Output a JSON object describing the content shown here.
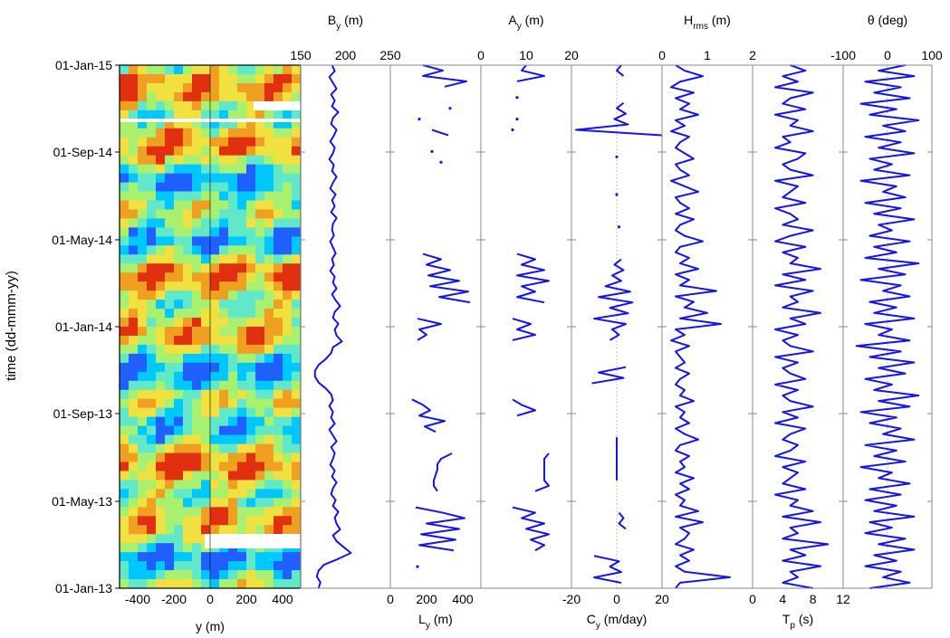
{
  "colors": {
    "line": "#1515e6",
    "axis": "#000000",
    "grid": "#8a8a8a"
  },
  "y_axis": {
    "label": "time (dd-mmm-yy)",
    "ticks": [
      "01-Jan-15",
      "01-Sep-14",
      "01-May-14",
      "01-Jan-14",
      "01-Sep-13",
      "01-May-13",
      "01-Jan-13"
    ]
  },
  "chart_data": [
    {
      "type": "heatmap",
      "xlabel": "y (m)",
      "xticks": [
        "-400",
        "-200",
        "0",
        "200",
        "400"
      ],
      "xlim": [
        -500,
        500
      ],
      "colormap": [
        "#2060ff",
        "#00c8ff",
        "#60e8c8",
        "#a8f070",
        "#f0e040",
        "#f0a020",
        "#e03010"
      ]
    },
    {
      "type": "line",
      "label_main": "B",
      "label_sub": "y",
      "label_suffix": " (m)",
      "label_position": "top",
      "xlim": [
        150,
        250
      ],
      "xticks": [
        "150",
        "200",
        "250"
      ],
      "values": [
        185,
        188,
        182,
        186,
        190,
        184,
        188,
        185,
        192,
        186,
        184,
        190,
        187,
        183,
        188,
        186,
        182,
        187,
        185,
        190,
        186,
        183,
        189,
        185,
        188,
        184,
        190,
        186,
        185,
        187,
        183,
        186,
        189,
        185,
        187,
        183,
        188,
        186,
        190,
        185,
        189,
        194,
        188,
        186,
        192,
        188,
        190,
        196,
        186,
        184,
        178,
        170,
        166,
        166,
        170,
        178,
        184,
        186,
        182,
        186,
        184,
        188,
        182,
        186,
        190,
        184,
        188,
        186,
        183,
        188,
        185,
        190,
        186,
        184,
        189,
        186,
        192,
        188,
        190,
        194,
        186,
        190,
        198,
        206,
        192,
        176,
        170,
        168,
        172,
        170
      ]
    },
    {
      "type": "line",
      "label_main": "L",
      "label_sub": "y",
      "label_suffix": " (m)",
      "label_position": "bottom",
      "xlim": [
        0,
        500
      ],
      "xticks": [
        "0",
        "200",
        "400"
      ],
      "values": [
        180,
        290,
        180,
        420,
        300,
        null,
        null,
        null,
        330,
        null,
        160,
        null,
        230,
        320,
        null,
        null,
        230,
        null,
        280,
        null,
        null,
        null,
        null,
        null,
        null,
        null,
        null,
        null,
        null,
        null,
        null,
        null,
        null,
        null,
        null,
        180,
        280,
        200,
        330,
        210,
        380,
        220,
        430,
        270,
        440,
        null,
        null,
        150,
        280,
        160,
        200,
        150,
        null,
        null,
        null,
        null,
        null,
        null,
        null,
        null,
        null,
        null,
        120,
        180,
        220,
        160,
        300,
        190,
        250,
        null,
        null,
        null,
        340,
        280,
        260,
        260,
        250,
        240,
        240,
        260,
        null,
        null,
        140,
        290,
        410,
        200,
        380,
        170,
        360,
        160,
        350,
        null,
        null,
        150,
        null,
        null,
        null,
        null
      ]
    },
    {
      "type": "line",
      "label_main": "A",
      "label_sub": "y",
      "label_suffix": " (m)",
      "label_position": "top",
      "xlim": [
        0,
        20
      ],
      "xticks": [
        "0",
        "10",
        "20"
      ],
      "values": [
        10,
        9,
        14,
        8,
        null,
        null,
        8,
        null,
        null,
        null,
        8,
        null,
        7,
        null,
        null,
        null,
        null,
        null,
        null,
        null,
        null,
        null,
        null,
        null,
        null,
        null,
        null,
        null,
        null,
        null,
        null,
        null,
        null,
        null,
        null,
        8,
        12,
        9,
        14,
        8,
        15,
        9,
        12,
        8,
        14,
        null,
        null,
        7,
        11,
        8,
        12,
        7,
        null,
        null,
        null,
        null,
        null,
        null,
        null,
        null,
        null,
        null,
        7,
        9,
        12,
        8,
        null,
        null,
        null,
        null,
        null,
        null,
        15,
        14,
        14,
        14,
        14,
        14,
        15,
        12,
        null,
        null,
        7,
        12,
        9,
        14,
        10,
        15,
        11,
        14,
        12,
        null,
        null,
        null,
        null,
        null,
        null,
        null
      ]
    },
    {
      "type": "line",
      "label_main": "C",
      "label_sub": "y",
      "label_suffix": " (m/day)",
      "label_position": "bottom",
      "xlim": [
        -20,
        20
      ],
      "xticks": [
        "-20",
        "0",
        "20"
      ],
      "values": [
        2,
        0,
        3,
        null,
        null,
        null,
        null,
        3,
        0,
        4,
        -1,
        5,
        -18,
        20,
        null,
        null,
        null,
        0,
        null,
        null,
        null,
        null,
        null,
        null,
        0,
        null,
        null,
        null,
        null,
        null,
        1,
        null,
        null,
        null,
        null,
        null,
        2,
        -1,
        3,
        -2,
        2,
        -5,
        6,
        -8,
        7,
        -3,
        5,
        -10,
        4,
        -2,
        1,
        -3,
        null,
        null,
        null,
        null,
        4,
        -8,
        3,
        -11,
        null,
        null,
        null,
        null,
        null,
        null,
        null,
        null,
        null,
        0,
        0,
        0,
        0,
        0,
        0,
        0,
        0,
        0,
        null,
        null,
        null,
        null,
        null,
        1,
        3,
        1,
        4,
        null,
        null,
        null,
        null,
        -10,
        1,
        -3,
        2,
        -10,
        2,
        null
      ]
    },
    {
      "type": "line",
      "label_main": "H",
      "label_sub": "rms",
      "label_suffix": " (m)",
      "label_position": "top",
      "xlim": [
        0,
        2
      ],
      "xticks": [
        "0",
        "1",
        "2"
      ],
      "values": [
        0.3,
        0.5,
        0.9,
        0.4,
        0.2,
        0.7,
        0.3,
        0.6,
        0.4,
        0.8,
        0.3,
        0.5,
        0.2,
        0.6,
        0.4,
        0.3,
        0.5,
        0.7,
        0.3,
        0.4,
        0.6,
        0.2,
        0.5,
        0.8,
        0.3,
        0.4,
        0.6,
        0.3,
        0.7,
        0.4,
        0.3,
        0.5,
        0.9,
        0.4,
        0.3,
        0.6,
        0.4,
        0.8,
        0.3,
        0.6,
        0.4,
        1.2,
        0.3,
        0.7,
        0.5,
        1.0,
        0.4,
        1.3,
        0.3,
        0.5,
        0.2,
        0.6,
        0.3,
        0.4,
        0.5,
        0.3,
        0.6,
        0.4,
        0.3,
        0.5,
        0.4,
        0.7,
        0.3,
        0.5,
        0.4,
        0.6,
        0.3,
        0.5,
        0.8,
        0.4,
        0.3,
        0.6,
        0.4,
        0.5,
        0.3,
        0.7,
        0.4,
        0.6,
        0.3,
        0.5,
        0.4,
        0.8,
        0.3,
        0.9,
        0.4,
        0.6,
        0.5,
        0.3,
        0.7,
        0.4,
        0.6,
        0.3,
        0.5,
        1.5,
        0.4,
        0.3
      ]
    },
    {
      "type": "line",
      "label_main": "T",
      "label_sub": "p",
      "label_suffix": " (s)",
      "label_position": "bottom",
      "xlim": [
        0,
        12
      ],
      "xticks": [
        "0",
        "4",
        "8",
        "12"
      ],
      "values": [
        5,
        7,
        4,
        6,
        3,
        8,
        5,
        4,
        7,
        3,
        6,
        5,
        8,
        4,
        5,
        3,
        7,
        6,
        4,
        5,
        8,
        3,
        6,
        5,
        4,
        7,
        3,
        5,
        6,
        4,
        8,
        5,
        3,
        7,
        4,
        6,
        5,
        9,
        4,
        7,
        3,
        8,
        5,
        6,
        4,
        9,
        5,
        7,
        3,
        6,
        4,
        5,
        8,
        3,
        6,
        4,
        5,
        7,
        3,
        6,
        4,
        5,
        8,
        4,
        6,
        3,
        7,
        5,
        4,
        6,
        5,
        3,
        7,
        4,
        6,
        5,
        4,
        7,
        3,
        6,
        5,
        8,
        4,
        9,
        5,
        6,
        4,
        10,
        5,
        7,
        4,
        9,
        5,
        6,
        4,
        8
      ]
    },
    {
      "type": "line",
      "label_main": "θ",
      "label_sub": "",
      "label_suffix": " (deg)",
      "label_position": "top",
      "xlim": [
        -100,
        100
      ],
      "xticks": [
        "-100",
        "0",
        "100"
      ],
      "values": [
        40,
        -20,
        60,
        -50,
        30,
        -30,
        50,
        -60,
        20,
        -40,
        70,
        -10,
        40,
        -50,
        30,
        -20,
        60,
        -40,
        10,
        -30,
        50,
        -60,
        20,
        -10,
        40,
        -50,
        30,
        -30,
        60,
        -20,
        10,
        -40,
        50,
        -30,
        20,
        -50,
        70,
        -20,
        40,
        -60,
        30,
        -10,
        50,
        -40,
        20,
        -30,
        60,
        -50,
        10,
        -20,
        50,
        -70,
        30,
        -40,
        60,
        -20,
        40,
        -50,
        10,
        -30,
        70,
        -20,
        50,
        -60,
        20,
        -40,
        30,
        -10,
        60,
        -50,
        20,
        -30,
        40,
        -60,
        10,
        -20,
        50,
        -40,
        30,
        -50,
        20,
        -30,
        60,
        -40,
        10,
        -50,
        40,
        -20,
        60,
        -30,
        20,
        -50,
        30,
        -10,
        50,
        -40
      ]
    }
  ]
}
